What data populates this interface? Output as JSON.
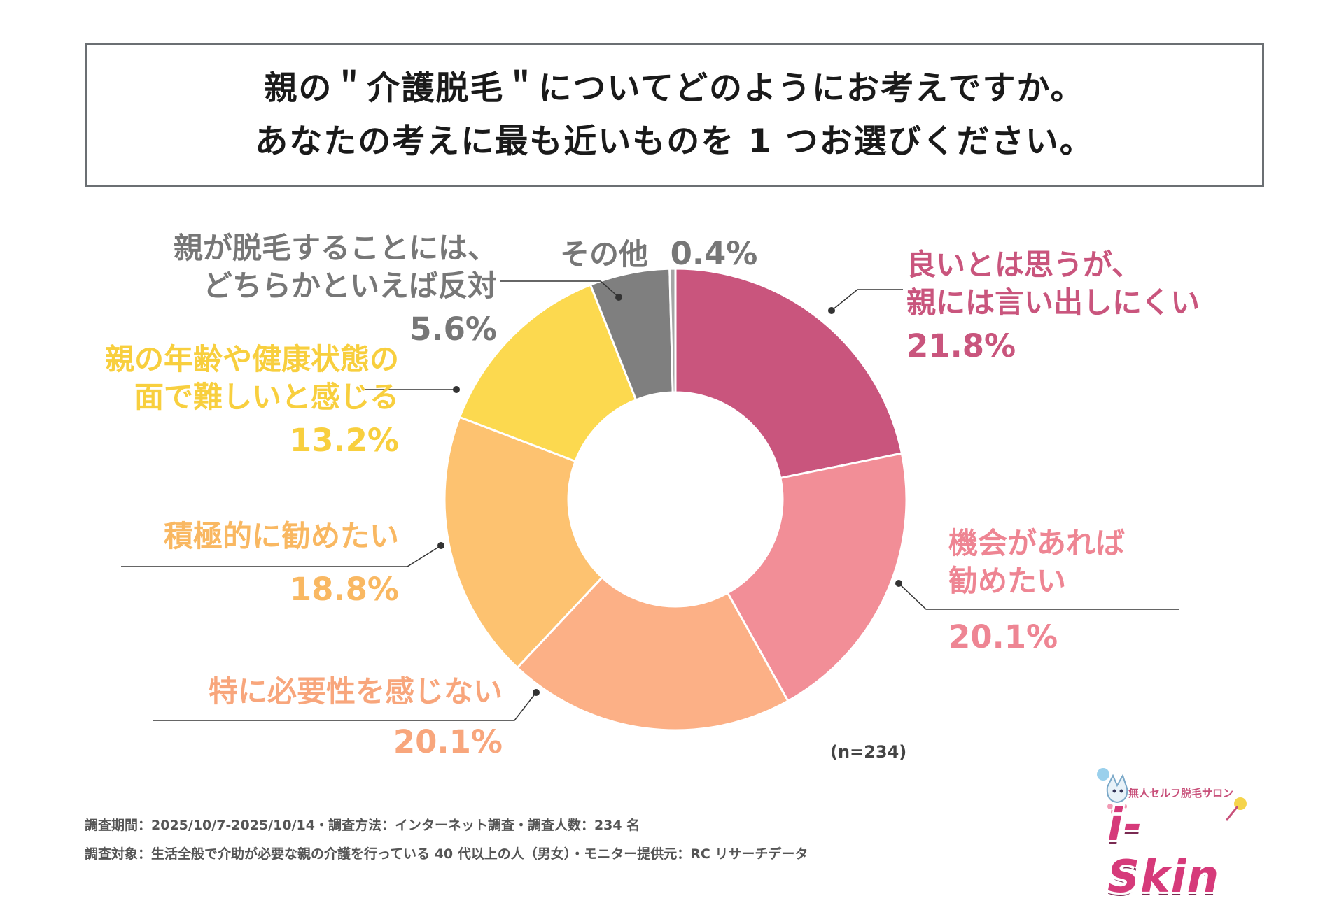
{
  "title": {
    "line1": "親の＂介護脱毛＂についてどのようにお考えですか。",
    "line2": "あなたの考えに最も近いものを 1 つお選びください。"
  },
  "chart_data": {
    "type": "pie",
    "variant": "donut",
    "title": "親の＂介護脱毛＂についてどのようにお考えですか。あなたの考えに最も近いものを 1 つお選びください。",
    "slices": [
      {
        "label_lines": [
          "良いとは思うが、",
          "親には言い出しにくい"
        ],
        "value": 21.8,
        "value_text": "21.8%",
        "color": "#c9557d",
        "label_color": "#c9557d"
      },
      {
        "label_lines": [
          "機会があれば",
          "勧めたい"
        ],
        "value": 20.1,
        "value_text": "20.1%",
        "color": "#f28e97",
        "label_color": "#ee8593"
      },
      {
        "label_lines": [
          "特に必要性を感じない"
        ],
        "value": 20.1,
        "value_text": "20.1%",
        "color": "#fcb086",
        "label_color": "#f8a67c"
      },
      {
        "label_lines": [
          "積極的に勧めたい"
        ],
        "value": 18.8,
        "value_text": "18.8%",
        "color": "#fdc270",
        "label_color": "#f9b862"
      },
      {
        "label_lines": [
          "親の年齢や健康状態の",
          "面で難しいと感じる"
        ],
        "value": 13.2,
        "value_text": "13.2%",
        "color": "#fcd94f",
        "label_color": "#f8cf3e"
      },
      {
        "label_lines": [
          "親が脱毛することには、",
          "どちらかといえば反対"
        ],
        "value": 5.6,
        "value_text": "5.6%",
        "color": "#7f7f7f",
        "label_color": "#777777"
      },
      {
        "label_lines": [
          "その他"
        ],
        "value": 0.4,
        "value_text": "0.4%",
        "color": "#a6a6a6",
        "label_color": "#777777"
      }
    ],
    "n_note": "(n=234)"
  },
  "footer": {
    "line1": "調査期間：2025/10/7-2025/10/14・調査方法：インターネット調査・調査人数：234 名",
    "line2": "調査対象：生活全般で介助が必要な親の介護を行っている 40 代以上の人（男女）・モニター提供元：RC リサーチデータ"
  },
  "logo": {
    "tagline": "無人セルフ脱毛サロン",
    "word": "i-Skin"
  }
}
